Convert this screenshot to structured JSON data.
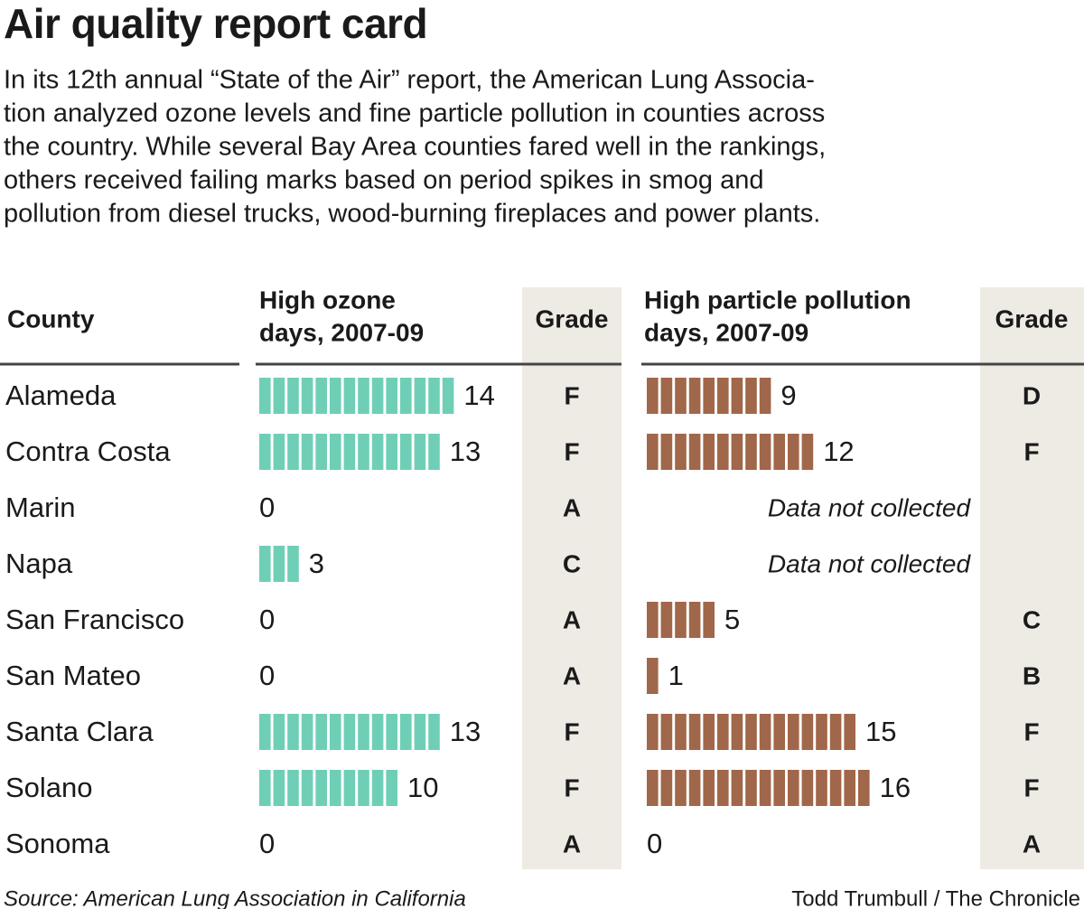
{
  "title": "Air quality report card",
  "description": [
    "In its 12th annual “State of the Air” report, the American Lung Associa-",
    "tion analyzed ozone levels and fine particle pollution in counties across",
    "the country. While several Bay Area counties fared well in the rankings,",
    "others received failing marks based on period spikes in smog and",
    "pollution from diesel trucks, wood-burning fireplaces and power plants."
  ],
  "table": {
    "headers": {
      "county": "County",
      "ozone": [
        "High ozone",
        "days, 2007-09"
      ],
      "ozone_grade": "Grade",
      "particle": [
        "High particle pollution",
        "days, 2007-09"
      ],
      "particle_grade": "Grade"
    },
    "ozone_color": "#6fcfb6",
    "particle_color": "#a0674a",
    "rows": [
      {
        "county": "Alameda",
        "ozone": 14,
        "ozone_grade": "F",
        "particle": 9,
        "particle_grade": "D"
      },
      {
        "county": "Contra Costa",
        "ozone": 13,
        "ozone_grade": "F",
        "particle": 12,
        "particle_grade": "F"
      },
      {
        "county": "Marin",
        "ozone": 0,
        "ozone_grade": "A",
        "particle": null,
        "particle_note": "Data not collected"
      },
      {
        "county": "Napa",
        "ozone": 3,
        "ozone_grade": "C",
        "particle": null,
        "particle_note": "Data not collected"
      },
      {
        "county": "San Francisco",
        "ozone": 0,
        "ozone_grade": "A",
        "particle": 5,
        "particle_grade": "C"
      },
      {
        "county": "San Mateo",
        "ozone": 0,
        "ozone_grade": "A",
        "particle": 1,
        "particle_grade": "B"
      },
      {
        "county": "Santa Clara",
        "ozone": 13,
        "ozone_grade": "F",
        "particle": 15,
        "particle_grade": "F"
      },
      {
        "county": "Solano",
        "ozone": 10,
        "ozone_grade": "F",
        "particle": 16,
        "particle_grade": "F"
      },
      {
        "county": "Sonoma",
        "ozone": 0,
        "ozone_grade": "A",
        "particle": 0,
        "particle_grade": "A"
      }
    ]
  },
  "source": "Source: American Lung Association in California",
  "credit": "Todd Trumbull / The Chronicle"
}
